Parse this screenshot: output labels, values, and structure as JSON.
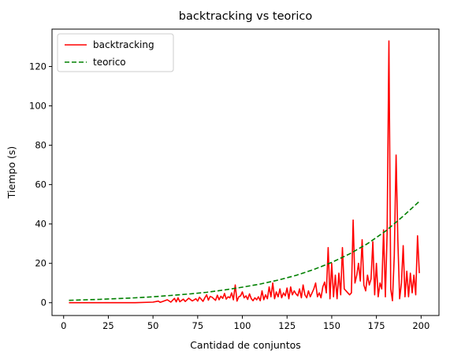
{
  "chart_data": {
    "type": "line",
    "title": "backtracking vs teorico",
    "xlabel": "Cantidad de conjuntos",
    "ylabel": "Tiempo (s)",
    "xlim": [
      -6.5,
      210
    ],
    "ylim": [
      -6.5,
      139
    ],
    "xticks": [
      0,
      25,
      50,
      75,
      100,
      125,
      150,
      175,
      200
    ],
    "yticks": [
      0,
      20,
      40,
      60,
      80,
      100,
      120
    ],
    "grid": false,
    "legend_position": "top-left",
    "series": [
      {
        "name": "backtracking",
        "color": "#ff0000",
        "style": "solid",
        "x": [
          3,
          10,
          20,
          30,
          40,
          50,
          53,
          54,
          55,
          58,
          60,
          62,
          63,
          64,
          65,
          67,
          68,
          70,
          72,
          74,
          75,
          76,
          78,
          79,
          80,
          81,
          82,
          83,
          85,
          86,
          87,
          88,
          89,
          90,
          91,
          92,
          93,
          94,
          95,
          96,
          97,
          98,
          99,
          100,
          101,
          102,
          103,
          104,
          105,
          106,
          107,
          108,
          109,
          110,
          111,
          112,
          113,
          114,
          115,
          116,
          117,
          118,
          119,
          120,
          121,
          122,
          123,
          124,
          125,
          126,
          127,
          128,
          129,
          130,
          131,
          132,
          133,
          134,
          135,
          136,
          137,
          138,
          139,
          140,
          141,
          142,
          143,
          144,
          145,
          146,
          147,
          148,
          149,
          150,
          151,
          152,
          153,
          154,
          155,
          156,
          157,
          158,
          159,
          160,
          161,
          162,
          163,
          164,
          165,
          166,
          167,
          168,
          169,
          170,
          171,
          172,
          173,
          174,
          175,
          176,
          177,
          178,
          179,
          180,
          181,
          182,
          183,
          184,
          185,
          186,
          187,
          188,
          189,
          190,
          191,
          192,
          193,
          194,
          195,
          196,
          197,
          198,
          199
        ],
        "y": [
          0,
          0,
          0,
          0,
          0,
          0.3,
          0.8,
          0.2,
          0.5,
          1.5,
          0.3,
          2.2,
          0.4,
          2.5,
          0.5,
          1.8,
          0.6,
          2.3,
          0.9,
          2,
          0.8,
          2.8,
          0.7,
          2.5,
          4,
          1.3,
          3.2,
          2.8,
          1.2,
          3.8,
          1.5,
          3.3,
          2.2,
          4.7,
          1.8,
          3,
          2.5,
          5,
          1.5,
          9,
          0.8,
          3,
          3.5,
          5.5,
          2.5,
          3.5,
          1.7,
          4.5,
          2,
          1,
          2.5,
          1.5,
          3,
          1,
          6,
          1.5,
          4,
          2,
          8,
          3,
          10,
          2,
          5.5,
          3,
          7,
          2.5,
          5,
          3.5,
          7.5,
          2,
          8,
          4,
          6,
          4.5,
          3.5,
          7,
          2.5,
          9,
          4,
          2.5,
          6,
          3,
          5,
          7,
          10,
          3,
          5,
          2.5,
          8,
          10.5,
          5,
          28,
          2,
          20,
          3,
          14,
          2,
          15,
          4,
          28,
          7,
          6,
          5,
          4,
          5,
          42,
          10,
          14,
          20,
          11,
          32,
          9,
          6,
          14,
          9,
          12,
          31,
          4,
          20,
          3,
          10,
          7,
          37,
          3,
          35,
          133,
          7,
          1,
          24,
          75,
          32,
          2,
          10,
          29,
          3,
          16,
          3,
          15,
          5,
          14,
          4,
          34,
          15
        ]
      },
      {
        "name": "teorico",
        "color": "#008000",
        "style": "dashed",
        "x": [
          3,
          10,
          20,
          30,
          40,
          50,
          60,
          70,
          80,
          90,
          100,
          110,
          120,
          130,
          140,
          150,
          160,
          170,
          180,
          190,
          199
        ],
        "y": [
          1.2,
          1.4,
          1.7,
          2.1,
          2.5,
          3.0,
          3.7,
          4.4,
          5.3,
          6.5,
          7.9,
          9.5,
          11.5,
          13.9,
          16.9,
          20.5,
          24.8,
          30.0,
          36.3,
          44.0,
          51.5
        ]
      }
    ]
  }
}
